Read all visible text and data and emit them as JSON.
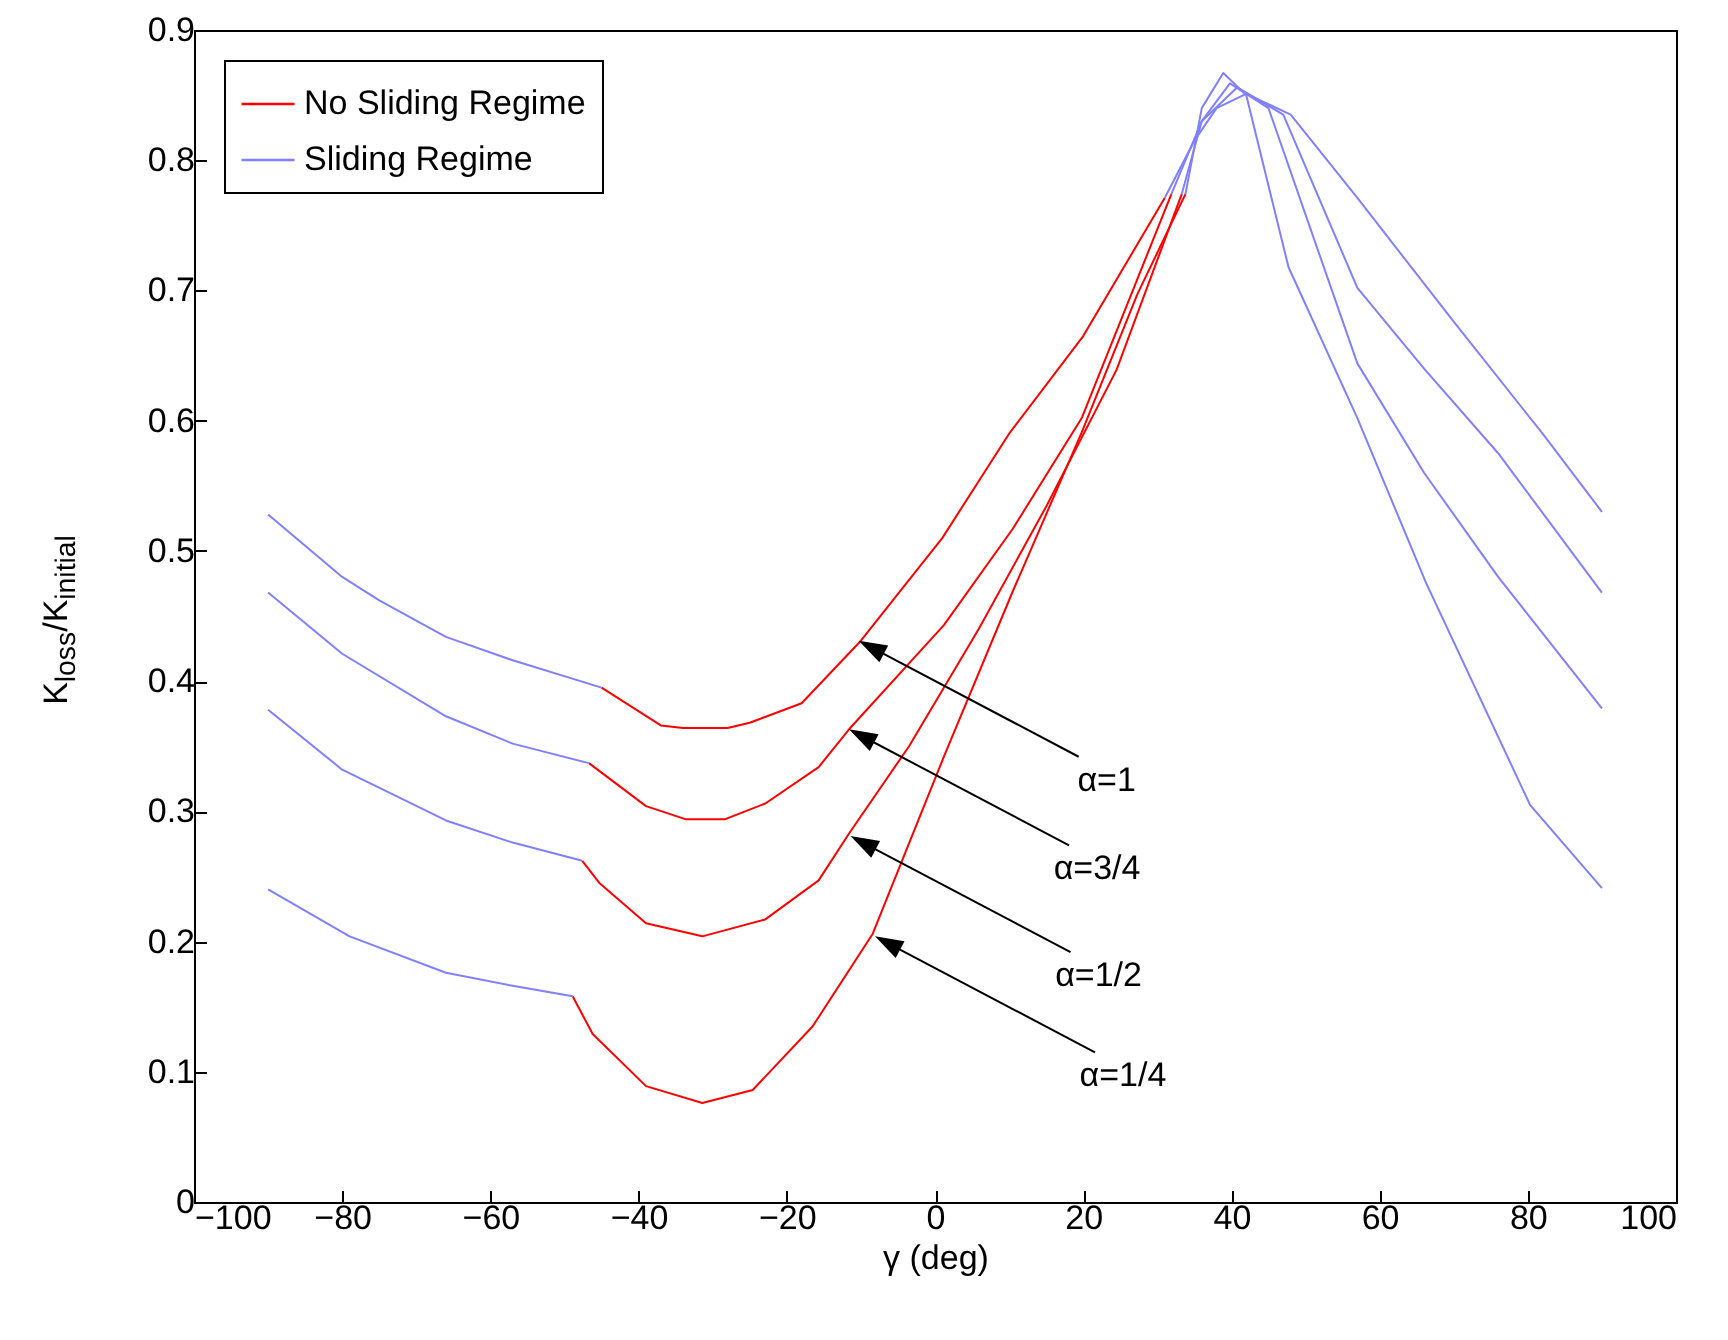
{
  "chart_data": {
    "type": "line",
    "xlabel": "γ (deg)",
    "ylabel": "K$_{loss}$/K$_{initial}$",
    "xlim": [
      -100,
      100
    ],
    "xticks": [
      -100,
      -80,
      -60,
      -40,
      -20,
      0,
      20,
      40,
      60,
      80,
      100
    ],
    "ylim": [
      0,
      0.9
    ],
    "yticks": [
      0,
      0.1,
      0.2,
      0.3,
      0.4,
      0.5,
      0.6,
      0.7,
      0.8,
      0.9
    ],
    "grid": false,
    "legend": "top left",
    "marker": "none",
    "line_style": "solid",
    "series": [
      {
        "name": "No Sliding Regime",
        "color": "#ff0000",
        "x": [
          -45,
          -37,
          -34,
          -28,
          -25,
          -18,
          -10,
          1,
          10,
          20,
          31,
          null,
          -46.7,
          -39,
          -33.7,
          -28.3,
          -22.9,
          -15.7,
          -11.6,
          1.2,
          10.5,
          19.8,
          31.9,
          null,
          -47.6,
          -45.3,
          -39,
          -31.4,
          -22.9,
          -15.7,
          -11.6,
          -3.5,
          5.9,
          15.1,
          24.5,
          33.3,
          null,
          -48.9,
          -46.2,
          -39,
          -31.4,
          -24.6,
          -16.5,
          -8.4,
          1.2,
          10.5,
          19.8,
          27.3,
          33.8
        ],
        "values": [
          0.395,
          0.366,
          0.364,
          0.364,
          0.368,
          0.383,
          0.431,
          0.51,
          0.59,
          0.665,
          0.771,
          null,
          0.337,
          0.304,
          0.294,
          0.294,
          0.306,
          0.334,
          0.363,
          0.443,
          0.517,
          0.602,
          0.774,
          null,
          0.262,
          0.245,
          0.214,
          0.204,
          0.217,
          0.247,
          0.283,
          0.35,
          0.44,
          0.535,
          0.639,
          0.774,
          null,
          0.158,
          0.129,
          0.089,
          0.076,
          0.086,
          0.135,
          0.206,
          0.342,
          0.469,
          0.591,
          0.697,
          0.774
        ]
      },
      {
        "name": "Sliding Regime",
        "color": "#8080ff",
        "x": [
          -90,
          -80,
          -75,
          -66,
          -57,
          -45,
          null,
          -90,
          -80,
          -66,
          -57,
          -46.7,
          null,
          -90,
          -80,
          -66,
          -57,
          -47.6,
          null,
          -90,
          -79,
          -66,
          -57,
          -48.9,
          null,
          31,
          35,
          38,
          42,
          48,
          57,
          70,
          82,
          90,
          null,
          31.9,
          36,
          40.8,
          47,
          57,
          66,
          76,
          90,
          null,
          33.3,
          36,
          39.8,
          45,
          57,
          66,
          76,
          90,
          null,
          33.8,
          36,
          38.9,
          42,
          47.7,
          57,
          66.3,
          80.3,
          90
        ],
        "values": [
          0.528,
          0.48,
          0.462,
          0.434,
          0.416,
          0.395,
          null,
          0.468,
          0.421,
          0.373,
          0.352,
          0.337,
          null,
          0.378,
          0.332,
          0.293,
          0.276,
          0.262,
          null,
          0.24,
          0.204,
          0.176,
          0.166,
          0.158,
          null,
          0.771,
          0.815,
          0.84,
          0.851,
          0.835,
          0.771,
          0.676,
          0.59,
          0.53,
          null,
          0.774,
          0.83,
          0.856,
          0.835,
          0.702,
          0.64,
          0.575,
          0.468,
          null,
          0.774,
          0.83,
          0.859,
          0.84,
          0.644,
          0.56,
          0.48,
          0.379,
          null,
          0.774,
          0.84,
          0.867,
          0.85,
          0.718,
          0.602,
          0.475,
          0.305,
          0.241
        ]
      }
    ],
    "annotations": [
      {
        "text": "α=1",
        "x": -10.3,
        "y": 0.431
      },
      {
        "text": "α=3/4",
        "x": -11.6,
        "y": 0.363
      },
      {
        "text": "α=1/2",
        "x": -11.4,
        "y": 0.281
      },
      {
        "text": "α=1/4",
        "x": -8.1,
        "y": 0.204
      }
    ]
  }
}
